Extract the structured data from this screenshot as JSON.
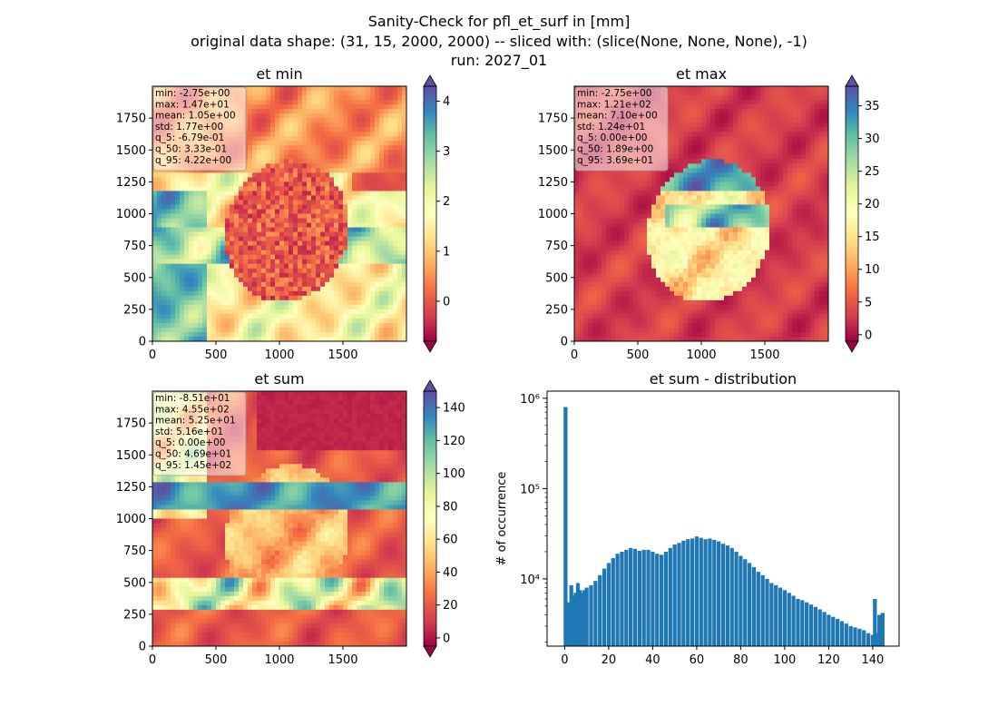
{
  "figure": {
    "suptitle_lines": [
      "Sanity-Check for pfl_et_surf in [mm]",
      "original data shape: (31, 15, 2000, 2000) -- sliced with: (slice(None, None, None), -1)",
      "run: 2027_01"
    ],
    "colormap": "Spectral",
    "colormap_stops": [
      "#9e0142",
      "#d53e4f",
      "#f46d43",
      "#fdae61",
      "#fee08b",
      "#ffffbf",
      "#e6f598",
      "#abdda4",
      "#66c2a5",
      "#3288bd",
      "#5e4fa2"
    ],
    "histogram_color": "#1f77b4"
  },
  "chart_data": [
    {
      "type": "heatmap",
      "title": "et min",
      "x_ticks": [
        0,
        500,
        1000,
        1500
      ],
      "y_ticks": [
        0,
        250,
        500,
        750,
        1000,
        1250,
        1500,
        1750
      ],
      "xlim": [
        0,
        2000
      ],
      "ylim": [
        0,
        2000
      ],
      "colorbar": {
        "vmin": -0.8,
        "vmax": 4.3,
        "ticks": [
          0,
          1,
          2,
          3,
          4
        ],
        "extend": "both"
      },
      "stats": [
        "min: -2.75e+00",
        "max: 1.47e+01",
        "mean: 1.05e+00",
        "std: 1.77e+00",
        "q_5: -6.79e-01",
        "q_50: 3.33e-01",
        "q_95: 4.22e+00"
      ]
    },
    {
      "type": "heatmap",
      "title": "et max",
      "x_ticks": [
        0,
        500,
        1000,
        1500
      ],
      "y_ticks": [
        0,
        250,
        500,
        750,
        1000,
        1250,
        1500,
        1750
      ],
      "xlim": [
        0,
        2000
      ],
      "ylim": [
        0,
        2000
      ],
      "colorbar": {
        "vmin": -1,
        "vmax": 38,
        "ticks": [
          0,
          5,
          10,
          15,
          20,
          25,
          30,
          35
        ],
        "extend": "both"
      },
      "stats": [
        "min: -2.75e+00",
        "max: 1.21e+02",
        "mean: 7.10e+00",
        "std: 1.24e+01",
        "q_5: 0.00e+00",
        "q_50: 1.89e+00",
        "q_95: 3.69e+01"
      ]
    },
    {
      "type": "heatmap",
      "title": "et sum",
      "x_ticks": [
        0,
        500,
        1000,
        1500
      ],
      "y_ticks": [
        0,
        250,
        500,
        750,
        1000,
        1250,
        1500,
        1750
      ],
      "xlim": [
        0,
        2000
      ],
      "ylim": [
        0,
        2000
      ],
      "colorbar": {
        "vmin": -5,
        "vmax": 150,
        "ticks": [
          0,
          20,
          40,
          60,
          80,
          100,
          120,
          140
        ],
        "extend": "both"
      },
      "stats": [
        "min: -8.51e+01",
        "max: 4.55e+02",
        "mean: 5.25e+01",
        "std: 5.16e+01",
        "q_5: 0.00e+00",
        "q_50: 4.69e+01",
        "q_95: 1.45e+02"
      ]
    },
    {
      "type": "bar",
      "subtype": "histogram",
      "title": "et sum - distribution",
      "ylabel": "# of occurrence",
      "xlabel": "",
      "yscale": "log",
      "x_ticks": [
        0,
        20,
        40,
        60,
        80,
        100,
        120,
        140
      ],
      "y_ticks": [
        {
          "value": 10000,
          "label": "10⁴"
        },
        {
          "value": 100000,
          "label": "10⁵"
        },
        {
          "value": 1000000,
          "label": "10⁶"
        }
      ],
      "xlim": [
        -8,
        152
      ],
      "ylim": [
        1800,
        1200000
      ],
      "bin_width": 0.73,
      "x": [
        0.4,
        1,
        2,
        3,
        4,
        5,
        6,
        7,
        8,
        9,
        10,
        12,
        14,
        16,
        18,
        20,
        22,
        24,
        26,
        28,
        30,
        32,
        34,
        36,
        38,
        40,
        42,
        44,
        46,
        48,
        50,
        52,
        54,
        56,
        58,
        60,
        62,
        64,
        66,
        68,
        70,
        72,
        74,
        76,
        78,
        80,
        82,
        84,
        86,
        88,
        90,
        92,
        94,
        96,
        98,
        100,
        102,
        104,
        106,
        108,
        110,
        112,
        114,
        116,
        118,
        120,
        122,
        124,
        126,
        128,
        130,
        132,
        134,
        136,
        138,
        140,
        141,
        142,
        143,
        144.5
      ],
      "values": [
        800000,
        4000,
        5500,
        8500,
        6500,
        7000,
        9000,
        7500,
        7000,
        7500,
        8000,
        8500,
        9500,
        11000,
        13000,
        15000,
        17000,
        19000,
        20000,
        21000,
        22000,
        21500,
        20500,
        21000,
        21000,
        20000,
        19000,
        18500,
        20000,
        22000,
        24000,
        25000,
        26500,
        27500,
        28000,
        29500,
        28500,
        27500,
        28000,
        27000,
        26000,
        24500,
        23500,
        22000,
        20000,
        18000,
        16500,
        15000,
        13500,
        12000,
        11000,
        10000,
        9000,
        8500,
        8000,
        7500,
        7000,
        6500,
        6000,
        5800,
        5500,
        5200,
        4900,
        4600,
        4300,
        4000,
        3800,
        3600,
        3400,
        3200,
        3000,
        2900,
        2800,
        2700,
        2500,
        2400,
        6000,
        2500,
        4000,
        4200
      ]
    }
  ]
}
